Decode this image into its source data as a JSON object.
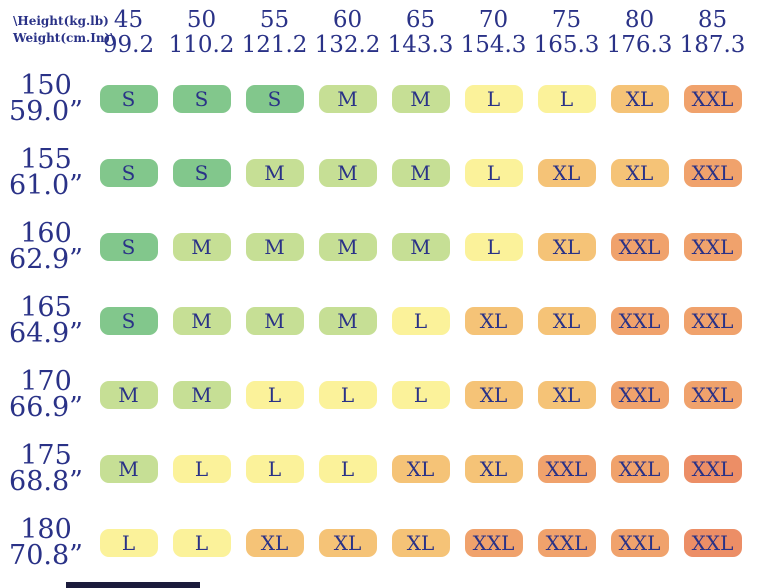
{
  "colors": {
    "text": "#2a3287",
    "size_s": "#82c78c",
    "size_m": "#c6df95",
    "size_l": "#fbf29a",
    "size_xl": "#f5c377",
    "size_xxl": "#f0a26c",
    "size_xxl_deep": "#ec8e66",
    "cutoff_bar": "#1c1c3c",
    "background": "#ffffff"
  },
  "chart_data": {
    "type": "heatmap",
    "corner": {
      "top_label": "\\Height(kg.lb)",
      "bottom_label": "Weight(cm.In)\\"
    },
    "columns": [
      {
        "kg": "45",
        "lb": "99.2"
      },
      {
        "kg": "50",
        "lb": "110.2"
      },
      {
        "kg": "55",
        "lb": "121.2"
      },
      {
        "kg": "60",
        "lb": "132.2"
      },
      {
        "kg": "65",
        "lb": "143.3"
      },
      {
        "kg": "70",
        "lb": "154.3"
      },
      {
        "kg": "75",
        "lb": "165.3"
      },
      {
        "kg": "80",
        "lb": "176.3"
      },
      {
        "kg": "85",
        "lb": "187.3"
      }
    ],
    "rows": [
      {
        "cm": "150",
        "inch": "59.0”"
      },
      {
        "cm": "155",
        "inch": "61.0”"
      },
      {
        "cm": "160",
        "inch": "62.9”"
      },
      {
        "cm": "165",
        "inch": "64.9”"
      },
      {
        "cm": "170",
        "inch": "66.9”"
      },
      {
        "cm": "175",
        "inch": "68.8”"
      },
      {
        "cm": "180",
        "inch": "70.8”"
      }
    ],
    "cells": [
      [
        "S",
        "S",
        "S",
        "M",
        "M",
        "L",
        "L",
        "XL",
        "XXL"
      ],
      [
        "S",
        "S",
        "M",
        "M",
        "M",
        "L",
        "XL",
        "XL",
        "XXL"
      ],
      [
        "S",
        "M",
        "M",
        "M",
        "M",
        "L",
        "XL",
        "XXL",
        "XXL"
      ],
      [
        "S",
        "M",
        "M",
        "M",
        "L",
        "XL",
        "XL",
        "XXL",
        "XXL"
      ],
      [
        "M",
        "M",
        "L",
        "L",
        "L",
        "XL",
        "XL",
        "XXL",
        "XXL"
      ],
      [
        "M",
        "L",
        "L",
        "L",
        "XL",
        "XL",
        "XXL",
        "XXL",
        "XXL_DEEP"
      ],
      [
        "L",
        "L",
        "XL",
        "XL",
        "XL",
        "XXL",
        "XXL",
        "XXL",
        "XXL_DEEP"
      ]
    ],
    "cell_color_keys": {
      "S": "size_s",
      "M": "size_m",
      "L": "size_l",
      "XL": "size_xl",
      "XXL": "size_xxl",
      "XXL_DEEP": "size_xxl_deep"
    },
    "cell_display": {
      "S": "S",
      "M": "M",
      "L": "L",
      "XL": "XL",
      "XXL": "XXL",
      "XXL_DEEP": "XXL"
    }
  }
}
